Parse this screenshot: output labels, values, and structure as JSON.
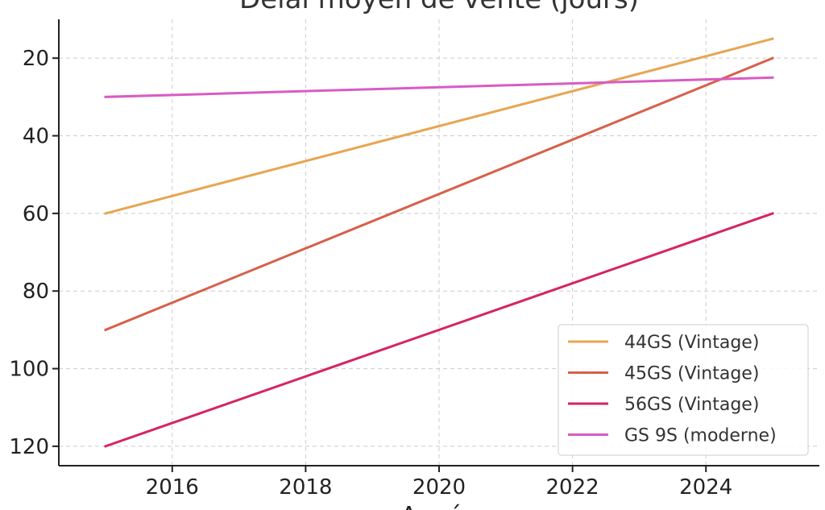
{
  "chart_data": {
    "type": "line",
    "title": "Délai moyen de vente (jours)",
    "xlabel": "Année",
    "ylabel": "",
    "x": [
      2015,
      2025
    ],
    "x_ticks": [
      2016,
      2018,
      2020,
      2022,
      2024
    ],
    "y_ticks": [
      20,
      40,
      60,
      80,
      100,
      120
    ],
    "xlim": [
      2014.3,
      2025.7
    ],
    "ylim": [
      125,
      10
    ],
    "y_inverted": true,
    "grid": true,
    "legend_position": "bottom-right",
    "series": [
      {
        "name": "44GS (Vintage)",
        "color": "#e8a552",
        "values": [
          60,
          15
        ]
      },
      {
        "name": "45GS (Vintage)",
        "color": "#d7604a",
        "values": [
          90,
          20
        ]
      },
      {
        "name": "56GS (Vintage)",
        "color": "#d62460",
        "values": [
          120,
          60
        ]
      },
      {
        "name": "GS 9S (moderne)",
        "color": "#d95bc4",
        "values": [
          30,
          25
        ]
      }
    ]
  }
}
